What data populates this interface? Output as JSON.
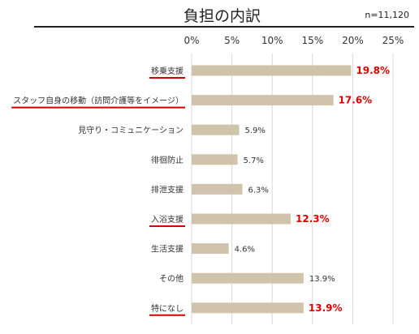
{
  "title": "負担の内訳",
  "note": "n=11,120",
  "colors": {
    "bar": "#cfc3ac",
    "grid": "#d9d9d9",
    "highlight": "#e00000",
    "underline": "#d40000"
  },
  "chart_data": {
    "type": "bar",
    "orientation": "horizontal",
    "title": "負担の内訳",
    "xlim": [
      0,
      25
    ],
    "xticks": [
      "0%",
      "5%",
      "10%",
      "15%",
      "20%",
      "25%"
    ],
    "grid": true,
    "categories": [
      "移乗支援",
      "スタッフ自身の移動（訪問介護等をイメージ）",
      "見守り・コミュニケーション",
      "徘徊防止",
      "排泄支援",
      "入浴支援",
      "生活支援",
      "その他",
      "特になし"
    ],
    "values": [
      19.8,
      17.6,
      5.9,
      5.7,
      6.3,
      12.3,
      4.6,
      13.9,
      13.9
    ],
    "value_labels": [
      "19.8%",
      "17.6%",
      "5.9%",
      "5.7%",
      "6.3%",
      "12.3%",
      "4.6%",
      "13.9%",
      "13.9%"
    ],
    "highlighted": [
      true,
      true,
      false,
      false,
      false,
      true,
      false,
      false,
      true
    ]
  }
}
